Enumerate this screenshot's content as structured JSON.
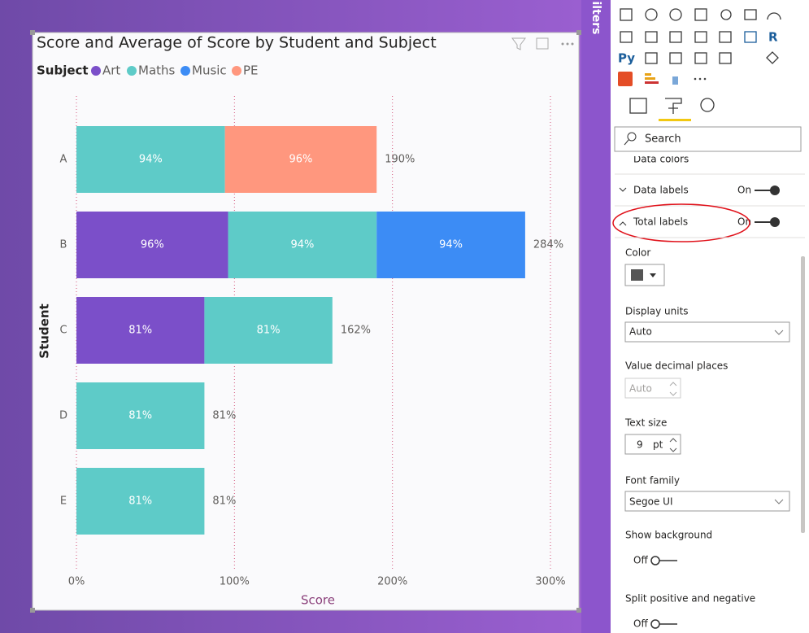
{
  "chart_data": {
    "type": "bar",
    "orientation": "horizontal",
    "stacked": true,
    "title": "Score and Average of Score by Student and Subject",
    "legend_title": "Subject",
    "x_label": "Score",
    "y_label": "Student",
    "categories": [
      "A",
      "B",
      "C",
      "D",
      "E"
    ],
    "series": [
      {
        "name": "Art",
        "color": "#7b4fc9",
        "values": [
          null,
          96,
          81,
          null,
          null
        ],
        "value_labels": [
          null,
          "96%",
          "81%",
          null,
          null
        ]
      },
      {
        "name": "Maths",
        "color": "#5ecbc8",
        "values": [
          94,
          94,
          81,
          81,
          81
        ],
        "value_labels": [
          "94%",
          "94%",
          "81%",
          "81%",
          "81%"
        ]
      },
      {
        "name": "Music",
        "color": "#3c8cf5",
        "values": [
          null,
          94,
          null,
          null,
          null
        ],
        "value_labels": [
          null,
          "94%",
          null,
          null,
          null
        ]
      },
      {
        "name": "PE",
        "color": "#ff977e",
        "values": [
          96,
          null,
          null,
          null,
          null
        ],
        "value_labels": [
          "96%",
          null,
          null,
          null,
          null
        ]
      }
    ],
    "totals": [
      190,
      284,
      162,
      81,
      81
    ],
    "total_labels": [
      "190%",
      "284%",
      "162%",
      "81%",
      "81%"
    ],
    "xlim": [
      0,
      300
    ],
    "xticks": [
      {
        "value": 0,
        "label": "0%"
      },
      {
        "value": 100,
        "label": "100%"
      },
      {
        "value": 200,
        "label": "200%"
      },
      {
        "value": 300,
        "label": "300%"
      }
    ],
    "grid": true
  },
  "filters_tab": "ilters",
  "visual_icons": {
    "r": "R",
    "py": "Py"
  },
  "format_pane": {
    "search": "Search",
    "data_colors": "Data colors",
    "data_labels": {
      "label": "Data labels",
      "state": "On"
    },
    "total_labels": {
      "label": "Total labels",
      "state": "On"
    },
    "color": "Color",
    "display_units": {
      "label": "Display units",
      "value": "Auto"
    },
    "decimal_places": {
      "label": "Value decimal places",
      "value": "Auto"
    },
    "text_size": {
      "label": "Text size",
      "value": "9",
      "unit": "pt"
    },
    "font_family": {
      "label": "Font family",
      "value": "Segoe UI"
    },
    "show_background": {
      "label": "Show background",
      "state": "Off"
    },
    "split": {
      "label": "Split positive and negative",
      "state": "Off"
    }
  }
}
